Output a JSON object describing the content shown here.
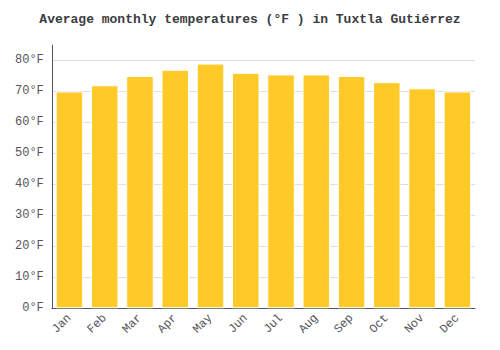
{
  "chart_data": {
    "type": "bar",
    "title": "Average monthly temperatures (°F ) in Tuxtla Gutiérrez",
    "categories": [
      "Jan",
      "Feb",
      "Mar",
      "Apr",
      "May",
      "Jun",
      "Jul",
      "Aug",
      "Sep",
      "Oct",
      "Nov",
      "Dec"
    ],
    "values": [
      70,
      72,
      75,
      77,
      79,
      76,
      75.5,
      75.5,
      75,
      73,
      71,
      70
    ],
    "color": "#FFCA28",
    "ylim": [
      0,
      85
    ],
    "yticks": [
      {
        "value": 0,
        "label": "0°F"
      },
      {
        "value": 10,
        "label": "10°F"
      },
      {
        "value": 20,
        "label": "20°F"
      },
      {
        "value": 30,
        "label": "30°F"
      },
      {
        "value": 40,
        "label": "40°F"
      },
      {
        "value": 50,
        "label": "50°F"
      },
      {
        "value": 60,
        "label": "60°F"
      },
      {
        "value": 70,
        "label": "70°F"
      },
      {
        "value": 80,
        "label": "80°F"
      }
    ],
    "grid": true
  }
}
